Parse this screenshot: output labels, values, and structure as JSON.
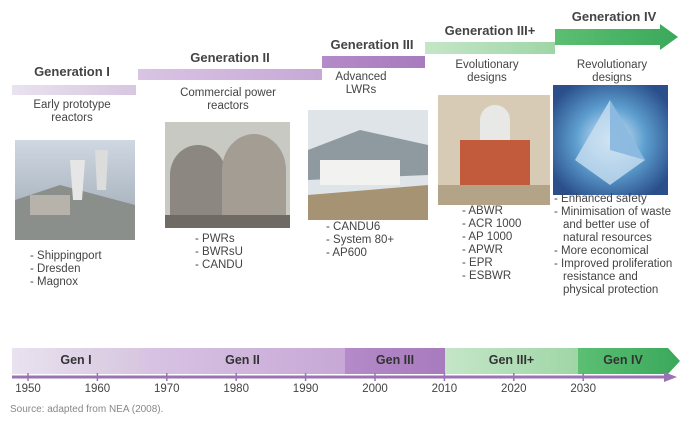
{
  "generations": [
    {
      "title": "Generation I",
      "description": "Early prototype reactors",
      "examples": [
        "Shippingport",
        "Dresden",
        "Magnox"
      ]
    },
    {
      "title": "Generation II",
      "description": "Commercial power reactors",
      "examples": [
        "PWRs",
        "BWRsU",
        "CANDU"
      ]
    },
    {
      "title": "Generation III",
      "description": "Advanced LWRs",
      "examples": [
        "CANDU6",
        "System 80+",
        "AP600"
      ]
    },
    {
      "title": "Generation III+",
      "description": "Evolutionary designs",
      "examples": [
        "ABWR",
        "ACR 1000",
        "AP 1000",
        "APWR",
        "EPR",
        "ESBWR"
      ]
    },
    {
      "title": "Generation IV",
      "description": "Revolutionary designs",
      "examples": [
        "Enhanced safety",
        "Minimisation of waste and better use of natural resources",
        "More economical",
        "Improved proliferation resistance and physical protection"
      ]
    }
  ],
  "timeline": {
    "bands": [
      "Gen I",
      "Gen II",
      "Gen III",
      "Gen III+",
      "Gen IV"
    ],
    "years": [
      "1950",
      "1960",
      "1970",
      "1980",
      "1990",
      "2000",
      "2010",
      "2020",
      "2030"
    ]
  },
  "source": "Source: adapted from NEA (2008)."
}
